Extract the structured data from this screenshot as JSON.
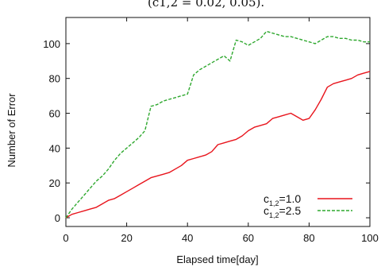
{
  "caption_fragment": "(c1,2 = 0.02, 0.05).",
  "chart_data": {
    "type": "line",
    "xlabel": "Elapsed time[day]",
    "ylabel": "Number of Error",
    "xlim": [
      0,
      100
    ],
    "ylim": [
      -5,
      115
    ],
    "xticks": [
      0,
      20,
      40,
      60,
      80,
      100
    ],
    "yticks": [
      0,
      20,
      40,
      60,
      80,
      100
    ],
    "grid": false,
    "legend_position": "bottom-right",
    "series": [
      {
        "name": "c1,2=1.0",
        "legend_main": "c",
        "legend_sub": "1,2",
        "legend_value": "=1.0",
        "color": "#e8141c",
        "dash": "solid",
        "x": [
          0,
          2,
          4,
          6,
          8,
          10,
          12,
          14,
          16,
          18,
          20,
          22,
          24,
          26,
          28,
          30,
          32,
          34,
          36,
          38,
          40,
          42,
          44,
          46,
          48,
          50,
          52,
          54,
          56,
          58,
          60,
          62,
          64,
          66,
          68,
          70,
          72,
          74,
          76,
          78,
          80,
          82,
          84,
          86,
          88,
          90,
          92,
          94,
          96,
          98,
          100
        ],
        "y": [
          0,
          2,
          3,
          4,
          5,
          6,
          8,
          10,
          11,
          13,
          15,
          17,
          19,
          21,
          23,
          24,
          25,
          26,
          28,
          30,
          33,
          34,
          35,
          36,
          38,
          42,
          43,
          44,
          45,
          47,
          50,
          52,
          53,
          54,
          57,
          58,
          59,
          60,
          58,
          56,
          57,
          62,
          68,
          75,
          77,
          78,
          79,
          80,
          82,
          83,
          84
        ]
      },
      {
        "name": "c1,2=2.5",
        "legend_main": "c",
        "legend_sub": "1,2",
        "legend_value": "=2.5",
        "color": "#2ea82e",
        "dash": "dashed",
        "x": [
          0,
          2,
          4,
          6,
          8,
          10,
          12,
          14,
          16,
          18,
          20,
          22,
          24,
          26,
          28,
          30,
          32,
          34,
          36,
          38,
          40,
          42,
          44,
          46,
          48,
          50,
          52,
          54,
          56,
          58,
          60,
          62,
          64,
          66,
          68,
          70,
          72,
          74,
          76,
          78,
          80,
          82,
          84,
          86,
          88,
          90,
          92,
          94,
          96,
          98,
          100
        ],
        "y": [
          0,
          5,
          9,
          13,
          17,
          21,
          24,
          28,
          33,
          37,
          40,
          43,
          46,
          50,
          64,
          65,
          67,
          68,
          69,
          70,
          71,
          82,
          85,
          87,
          89,
          91,
          93,
          90,
          102,
          101,
          99,
          101,
          103,
          107,
          106,
          105,
          104,
          104,
          103,
          102,
          101,
          100,
          102,
          104,
          104,
          103,
          103,
          102,
          102,
          101,
          101
        ]
      }
    ]
  }
}
